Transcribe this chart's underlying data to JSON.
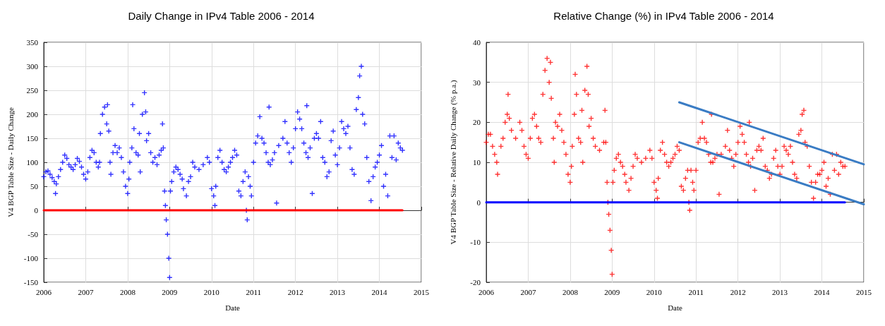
{
  "chart_data": [
    {
      "type": "scatter",
      "title": "Daily Change in IPv4 Table 2006 - 2014",
      "xlabel": "Date",
      "ylabel": "V4 BGP Table Size - Daily Change",
      "xlim": [
        2006,
        2015
      ],
      "xticks": [
        2006,
        2007,
        2008,
        2009,
        2010,
        2011,
        2012,
        2013,
        2014,
        2015
      ],
      "ylim": [
        -150,
        350
      ],
      "yticks": [
        -150,
        -100,
        -50,
        0,
        50,
        100,
        150,
        200,
        250,
        300,
        350
      ],
      "grid": true,
      "marker": "cross",
      "series": [
        {
          "color": "#0000ff",
          "x": [
            2006.0,
            2006.05,
            2006.1,
            2006.15,
            2006.2,
            2006.25,
            2006.28,
            2006.3,
            2006.35,
            2006.4,
            2006.45,
            2006.5,
            2006.55,
            2006.6,
            2006.65,
            2006.7,
            2006.75,
            2006.8,
            2006.85,
            2006.9,
            2006.95,
            2007.0,
            2007.05,
            2007.1,
            2007.15,
            2007.2,
            2007.25,
            2007.3,
            2007.33,
            2007.35,
            2007.4,
            2007.45,
            2007.5,
            2007.52,
            2007.55,
            2007.58,
            2007.6,
            2007.65,
            2007.7,
            2007.75,
            2007.8,
            2007.85,
            2007.9,
            2007.95,
            2008.0,
            2008.03,
            2008.05,
            2008.1,
            2008.12,
            2008.15,
            2008.2,
            2008.25,
            2008.28,
            2008.3,
            2008.35,
            2008.4,
            2008.43,
            2008.45,
            2008.5,
            2008.55,
            2008.6,
            2008.65,
            2008.7,
            2008.75,
            2008.8,
            2008.83,
            2008.85,
            2008.88,
            2008.9,
            2008.92,
            2008.95,
            2008.98,
            2009.0,
            2009.02,
            2009.05,
            2009.1,
            2009.15,
            2009.2,
            2009.25,
            2009.3,
            2009.33,
            2009.4,
            2009.45,
            2009.5,
            2009.55,
            2009.6,
            2009.7,
            2009.8,
            2009.9,
            2009.95,
            2010.0,
            2010.05,
            2010.08,
            2010.1,
            2010.15,
            2010.2,
            2010.25,
            2010.3,
            2010.35,
            2010.4,
            2010.45,
            2010.5,
            2010.55,
            2010.6,
            2010.65,
            2010.7,
            2010.75,
            2010.8,
            2010.83,
            2010.85,
            2010.88,
            2010.92,
            2010.95,
            2011.0,
            2011.05,
            2011.1,
            2011.15,
            2011.2,
            2011.25,
            2011.3,
            2011.35,
            2011.37,
            2011.4,
            2011.45,
            2011.5,
            2011.55,
            2011.6,
            2011.7,
            2011.75,
            2011.8,
            2011.85,
            2011.9,
            2011.95,
            2012.0,
            2012.05,
            2012.1,
            2012.15,
            2012.2,
            2012.25,
            2012.27,
            2012.3,
            2012.35,
            2012.4,
            2012.45,
            2012.5,
            2012.55,
            2012.6,
            2012.65,
            2012.7,
            2012.75,
            2012.8,
            2012.85,
            2012.9,
            2012.95,
            2013.0,
            2013.05,
            2013.1,
            2013.15,
            2013.2,
            2013.25,
            2013.3,
            2013.35,
            2013.4,
            2013.45,
            2013.5,
            2013.53,
            2013.57,
            2013.6,
            2013.65,
            2013.7,
            2013.75,
            2013.8,
            2013.85,
            2013.9,
            2013.95,
            2014.0,
            2014.05,
            2014.1,
            2014.15,
            2014.2,
            2014.25,
            2014.3,
            2014.35,
            2014.4,
            2014.45,
            2014.5,
            2014.55
          ],
          "values": [
            70,
            80,
            82,
            75,
            68,
            60,
            35,
            55,
            70,
            85,
            100,
            115,
            108,
            95,
            90,
            85,
            95,
            108,
            102,
            90,
            75,
            65,
            80,
            110,
            125,
            120,
            100,
            90,
            100,
            160,
            200,
            215,
            180,
            220,
            165,
            100,
            75,
            120,
            135,
            120,
            130,
            110,
            80,
            50,
            35,
            65,
            100,
            130,
            220,
            170,
            120,
            115,
            160,
            80,
            200,
            245,
            205,
            145,
            160,
            120,
            100,
            110,
            95,
            115,
            125,
            180,
            130,
            40,
            10,
            -20,
            -50,
            -100,
            -140,
            40,
            60,
            80,
            90,
            85,
            75,
            65,
            45,
            30,
            60,
            70,
            100,
            90,
            85,
            95,
            110,
            100,
            45,
            30,
            10,
            50,
            110,
            125,
            100,
            85,
            80,
            90,
            100,
            110,
            125,
            115,
            40,
            30,
            60,
            80,
            0,
            -20,
            70,
            50,
            30,
            100,
            140,
            155,
            195,
            150,
            140,
            120,
            100,
            215,
            95,
            105,
            120,
            15,
            135,
            150,
            185,
            140,
            120,
            100,
            130,
            170,
            205,
            190,
            170,
            140,
            120,
            218,
            110,
            130,
            35,
            150,
            160,
            150,
            185,
            110,
            100,
            70,
            80,
            145,
            165,
            115,
            95,
            130,
            185,
            170,
            160,
            175,
            130,
            85,
            75,
            210,
            235,
            280,
            300,
            200,
            180,
            110,
            60,
            20,
            70,
            90,
            100,
            115,
            135,
            50,
            75,
            30,
            155,
            110,
            155,
            105,
            140,
            130,
            125
          ]
        },
        {
          "type": "line",
          "marker": "none",
          "color": "#ff0000",
          "x": [
            2006,
            2014.55
          ],
          "values": [
            0,
            0
          ]
        }
      ]
    },
    {
      "type": "scatter",
      "title": "Relative Change (%) in IPv4 Table 2006 - 2014",
      "xlabel": "Date",
      "ylabel": "V4 BGP Table Size - Relative Daily Change (% p.a.)",
      "xlim": [
        2006,
        2015
      ],
      "xticks": [
        2006,
        2007,
        2008,
        2009,
        2010,
        2011,
        2012,
        2013,
        2014,
        2015
      ],
      "ylim": [
        -20,
        40
      ],
      "yticks": [
        -20,
        -10,
        0,
        10,
        20,
        30,
        40
      ],
      "grid": true,
      "marker": "cross",
      "series": [
        {
          "color": "#ff0000",
          "x": [
            2006.0,
            2006.05,
            2006.1,
            2006.15,
            2006.2,
            2006.25,
            2006.27,
            2006.35,
            2006.4,
            2006.45,
            2006.5,
            2006.52,
            2006.55,
            2006.6,
            2006.7,
            2006.8,
            2006.85,
            2006.9,
            2006.95,
            2007.0,
            2007.05,
            2007.1,
            2007.15,
            2007.2,
            2007.25,
            2007.3,
            2007.35,
            2007.4,
            2007.45,
            2007.5,
            2007.53,
            2007.55,
            2007.6,
            2007.62,
            2007.65,
            2007.7,
            2007.75,
            2007.8,
            2007.85,
            2007.9,
            2007.95,
            2008.0,
            2008.03,
            2008.05,
            2008.1,
            2008.12,
            2008.15,
            2008.2,
            2008.25,
            2008.28,
            2008.3,
            2008.35,
            2008.4,
            2008.43,
            2008.45,
            2008.5,
            2008.55,
            2008.6,
            2008.7,
            2008.8,
            2008.83,
            2008.85,
            2008.88,
            2008.9,
            2008.92,
            2008.95,
            2008.98,
            2009.0,
            2009.02,
            2009.05,
            2009.1,
            2009.15,
            2009.2,
            2009.25,
            2009.3,
            2009.33,
            2009.4,
            2009.45,
            2009.5,
            2009.55,
            2009.6,
            2009.7,
            2009.8,
            2009.9,
            2009.95,
            2010.0,
            2010.05,
            2010.08,
            2010.1,
            2010.15,
            2010.2,
            2010.25,
            2010.3,
            2010.35,
            2010.4,
            2010.45,
            2010.5,
            2010.55,
            2010.6,
            2010.65,
            2010.7,
            2010.75,
            2010.8,
            2010.83,
            2010.85,
            2010.88,
            2010.92,
            2010.95,
            2011.0,
            2011.05,
            2011.1,
            2011.15,
            2011.2,
            2011.25,
            2011.3,
            2011.35,
            2011.37,
            2011.4,
            2011.45,
            2011.5,
            2011.55,
            2011.6,
            2011.7,
            2011.75,
            2011.8,
            2011.85,
            2011.9,
            2011.95,
            2012.0,
            2012.05,
            2012.1,
            2012.15,
            2012.2,
            2012.25,
            2012.27,
            2012.3,
            2012.35,
            2012.4,
            2012.45,
            2012.5,
            2012.55,
            2012.6,
            2012.65,
            2012.7,
            2012.75,
            2012.8,
            2012.85,
            2012.9,
            2012.95,
            2013.0,
            2013.05,
            2013.1,
            2013.15,
            2013.2,
            2013.25,
            2013.3,
            2013.35,
            2013.4,
            2013.45,
            2013.5,
            2013.53,
            2013.57,
            2013.6,
            2013.65,
            2013.7,
            2013.75,
            2013.8,
            2013.85,
            2013.9,
            2013.95,
            2014.0,
            2014.05,
            2014.1,
            2014.15,
            2014.2,
            2014.25,
            2014.3,
            2014.35,
            2014.4,
            2014.45,
            2014.5,
            2014.55
          ],
          "values": [
            15,
            17,
            17,
            14,
            12,
            10,
            7,
            14,
            16,
            20,
            22,
            27,
            21,
            18,
            16,
            20,
            18,
            14,
            12,
            11,
            16,
            21,
            22,
            19,
            16,
            15,
            27,
            33,
            36,
            30,
            35,
            26,
            16,
            10,
            20,
            19,
            22,
            18,
            15,
            12,
            7,
            5,
            9,
            14,
            22,
            32,
            27,
            16,
            15,
            23,
            10,
            28,
            34,
            27,
            19,
            21,
            16,
            14,
            13,
            15,
            23,
            15,
            5,
            0,
            -3,
            -7,
            -12,
            -18,
            5,
            8,
            11,
            12,
            10,
            9,
            7,
            5,
            3,
            6,
            9,
            12,
            11,
            10,
            11,
            13,
            11,
            5,
            3,
            1,
            6,
            13,
            15,
            12,
            10,
            9,
            10,
            11,
            12,
            14,
            13,
            4,
            3,
            6,
            8,
            0,
            -2,
            8,
            5,
            3,
            8,
            15,
            16,
            20,
            16,
            15,
            12,
            10,
            22,
            10,
            11,
            12,
            2,
            12,
            14,
            18,
            13,
            11,
            9,
            12,
            15,
            19,
            17,
            15,
            12,
            10,
            20,
            9,
            11,
            3,
            13,
            14,
            13,
            16,
            9,
            8,
            6,
            7,
            11,
            13,
            9,
            7,
            9,
            14,
            13,
            12,
            14,
            10,
            7,
            6,
            17,
            18,
            22,
            23,
            15,
            14,
            9,
            5,
            1,
            5,
            7,
            7,
            8,
            10,
            4,
            6,
            2,
            12,
            8,
            12,
            7,
            10,
            9,
            9
          ]
        },
        {
          "type": "line",
          "marker": "none",
          "color": "#0000ff",
          "x": [
            2006,
            2014.55
          ],
          "values": [
            0,
            0
          ]
        },
        {
          "type": "line",
          "marker": "none",
          "color": "#3a7cc4",
          "x": [
            2010.6,
            2015
          ],
          "values": [
            25,
            9.5
          ]
        },
        {
          "type": "line",
          "marker": "none",
          "color": "#3a7cc4",
          "x": [
            2010.6,
            2015
          ],
          "values": [
            15,
            -0.5
          ]
        }
      ]
    }
  ]
}
